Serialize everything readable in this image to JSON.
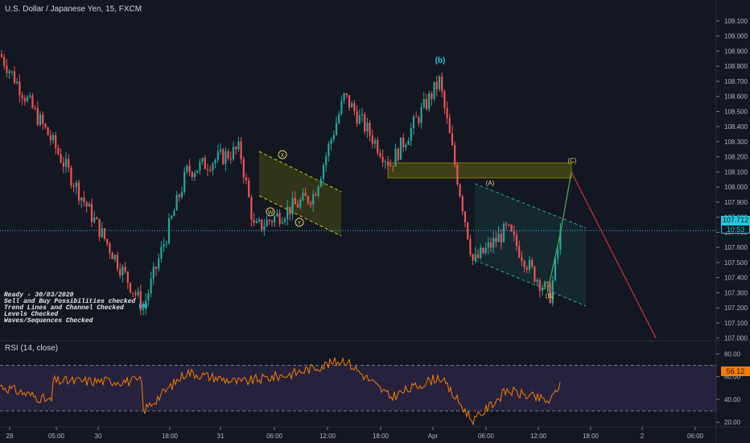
{
  "header": {
    "title": "U.S. Dollar / Japanese Yen, 15, FXCM"
  },
  "rsi_panel": {
    "title": "RSI (14, close)",
    "current_value": "56.12"
  },
  "price_axis": {
    "current_price": "107.712",
    "countdown": "10:53"
  },
  "notes": [
    "Ready - 30/03/2020",
    "Sell and Buy Possibilities checked",
    "Trend Lines and Channel Checked",
    "Levels Checked",
    "Waves/Sequences Checked"
  ],
  "wave_labels": {
    "a": "(a)",
    "b": "(b)",
    "A": "(A)",
    "B": "(B)",
    "C": "(C)",
    "W": "W",
    "X": "X",
    "Y": "Y"
  },
  "colors": {
    "background": "#131722",
    "up_candle": "#26a69a",
    "down_candle": "#ef5350",
    "rsi_line": "#f57c00",
    "rsi_band": "#7e57c2",
    "price_line": "#26c6da",
    "zone": "#8d8d00",
    "projection_up": "#4caf50",
    "projection_down": "#d32f2f"
  },
  "chart_data": [
    {
      "type": "candlestick",
      "title": "U.S. Dollar / Japanese Yen, 15, FXCM",
      "x_tick_labels": [
        "28",
        "05:00",
        "30",
        "18:00",
        "31",
        "06:00",
        "12:00",
        "18:00",
        "Apr",
        "06:00",
        "12:00",
        "18:00",
        "2",
        "06:00"
      ],
      "y_tick_labels": [
        "109.100",
        "109.000",
        "108.900",
        "108.800",
        "108.700",
        "108.600",
        "108.500",
        "108.400",
        "108.300",
        "108.200",
        "108.100",
        "108.000",
        "107.900",
        "107.800",
        "107.700",
        "107.600",
        "107.500",
        "107.400",
        "107.300",
        "107.200",
        "107.100",
        "107.000"
      ],
      "ylim": [
        106.95,
        109.15
      ],
      "current_price": 107.712,
      "path_keypoints": [
        {
          "x": "start",
          "y": 108.88
        },
        {
          "x": "29 10:00",
          "y": 108.3
        },
        {
          "x": "29 20:00",
          "y": 107.8
        },
        {
          "x": "30 06:00",
          "y": 107.2
        },
        {
          "x": "30 18:00",
          "y": 108.1
        },
        {
          "x": "31 04:00",
          "y": 108.25
        },
        {
          "x": "31 07:00",
          "y": 107.72
        },
        {
          "x": "31 11:00",
          "y": 107.95
        },
        {
          "x": "31 13:00",
          "y": 108.6
        },
        {
          "x": "31 19:00",
          "y": 108.15
        },
        {
          "x": "Apr 02:00",
          "y": 108.7
        },
        {
          "x": "Apr 05:00",
          "y": 107.5
        },
        {
          "x": "Apr 08:00",
          "y": 107.72
        },
        {
          "x": "Apr 11:00",
          "y": 107.45
        },
        {
          "x": "Apr 13:00",
          "y": 107.28
        },
        {
          "x": "Apr 15:00",
          "y": 107.71
        }
      ],
      "wave_points": {
        "(a)": 107.2,
        "(b)": 108.72,
        "(A)": 107.9,
        "(B)": 107.28,
        "(C)": 108.1
      },
      "resistance_zone": [
        108.06,
        108.16
      ],
      "projection": [
        {
          "x": "Apr 15:00",
          "y": 107.71
        },
        {
          "x": "Apr 16:30",
          "y": 108.1
        },
        {
          "x": "2 06:00",
          "y": 107.0
        }
      ]
    },
    {
      "type": "line",
      "title": "RSI (14, close)",
      "y_tick_labels": [
        "80.00",
        "60.00",
        "40.00",
        "20.00"
      ],
      "ylim": [
        16,
        82
      ],
      "bands": [
        30,
        70
      ],
      "current_value": 56.12,
      "keypoints": [
        {
          "x": "start",
          "y": 52
        },
        {
          "x": "29 10:00",
          "y": 38
        },
        {
          "x": "30 02:00",
          "y": 33
        },
        {
          "x": "30 06:00",
          "y": 30
        },
        {
          "x": "30 18:00",
          "y": 64
        },
        {
          "x": "31 04:00",
          "y": 55
        },
        {
          "x": "31 10:00",
          "y": 62
        },
        {
          "x": "31 13:00",
          "y": 75
        },
        {
          "x": "31 19:00",
          "y": 42
        },
        {
          "x": "Apr 02:00",
          "y": 60
        },
        {
          "x": "Apr 05:00",
          "y": 21
        },
        {
          "x": "Apr 08:00",
          "y": 48
        },
        {
          "x": "Apr 13:00",
          "y": 38
        },
        {
          "x": "Apr 15:00",
          "y": 56.12
        }
      ]
    }
  ]
}
